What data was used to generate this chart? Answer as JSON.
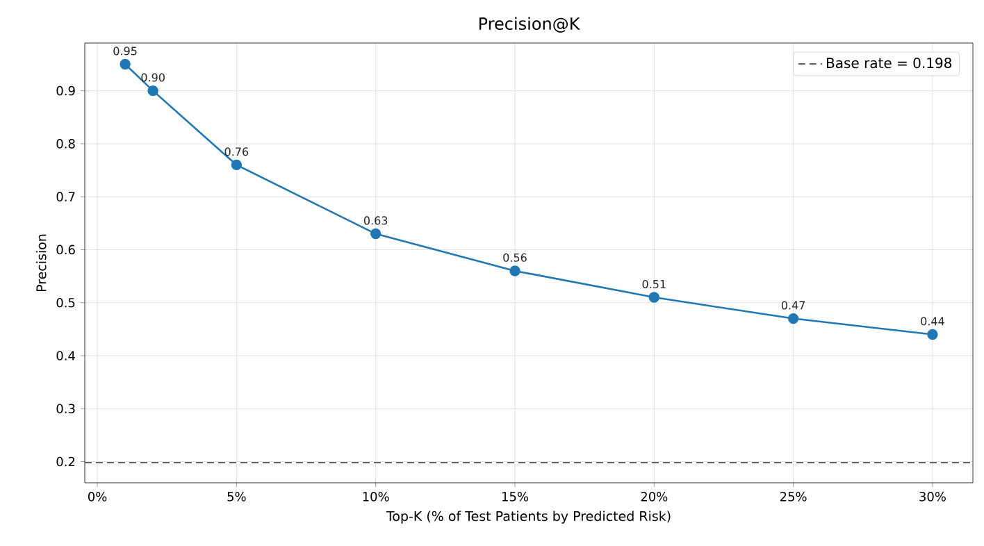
{
  "chart_data": {
    "type": "line",
    "title": "Precision@K",
    "xlabel": "Top-K (% of Test Patients by Predicted Risk)",
    "ylabel": "Precision",
    "x": [
      1,
      2,
      5,
      10,
      15,
      20,
      25,
      30
    ],
    "series": [
      {
        "color": "#1f77b4",
        "values": [
          0.95,
          0.9,
          0.76,
          0.63,
          0.56,
          0.51,
          0.47,
          0.44
        ],
        "value_labels": [
          "0.95",
          "0.90",
          "0.76",
          "0.63",
          "0.56",
          "0.51",
          "0.47",
          "0.44"
        ]
      }
    ],
    "xlim": [
      -0.45,
      31.45
    ],
    "ylim": [
      0.16,
      0.99
    ],
    "xticks": [
      {
        "value": 0,
        "label": "0%"
      },
      {
        "value": 5,
        "label": "5%"
      },
      {
        "value": 10,
        "label": "10%"
      },
      {
        "value": 15,
        "label": "15%"
      },
      {
        "value": 20,
        "label": "20%"
      },
      {
        "value": 25,
        "label": "25%"
      },
      {
        "value": 30,
        "label": "30%"
      }
    ],
    "yticks": [
      0.2,
      0.3,
      0.4,
      0.5,
      0.6,
      0.7,
      0.8,
      0.9
    ],
    "ref_lines": [
      {
        "axis": "y",
        "value": 0.198,
        "label": "Base rate = 0.198",
        "color": "#666666",
        "line_style": "dashed"
      }
    ],
    "grid": true,
    "legend": "top right",
    "marker": "circle",
    "line_style": "solid"
  }
}
